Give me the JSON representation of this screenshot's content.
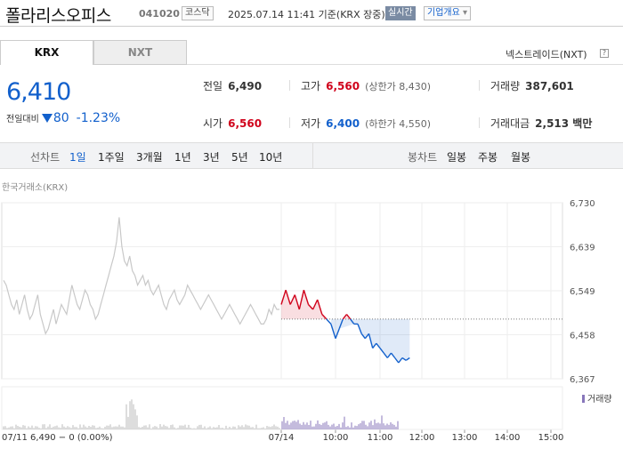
{
  "header": {
    "name": "폴라리스오피스",
    "code": "041020",
    "market": "코스닥",
    "datetime": "2025.07.14 11:41 기준(KRX 장중)",
    "live": "실시간",
    "info_btn": "기업개요"
  },
  "tabs": [
    {
      "label": "KRX"
    },
    {
      "label": "NXT"
    }
  ],
  "nxt_link": "넥스트레이드(NXT)",
  "quote": {
    "price": "6,410",
    "change_label": "전일대비",
    "change": "80",
    "change_pct": "-1.23%",
    "prev_label": "전일",
    "prev": "6,490",
    "high_label": "고가",
    "high": "6,560",
    "upper_label": "(상한가 8,430)",
    "volume_label": "거래량",
    "volume": "387,601",
    "open_label": "시가",
    "open": "6,560",
    "low_label": "저가",
    "low": "6,400",
    "lower_label": "(하한가 4,550)",
    "amount_label": "거래대금",
    "amount": "2,513 백만"
  },
  "periods": {
    "line_label": "선차트",
    "line": [
      "1일",
      "1주일",
      "3개월",
      "1년",
      "3년",
      "5년",
      "10년"
    ],
    "candle_label": "봉차트",
    "candle": [
      "일봉",
      "주봉",
      "월봉"
    ],
    "active": "1일"
  },
  "exchange_label": "한국거래소(KRX)",
  "colors": {
    "up": "#d0021b",
    "down": "#1260cc",
    "prev": "#c8c8c8"
  },
  "chart_data": {
    "type": "line",
    "y_ticks": [
      "6,730",
      "6,639",
      "6,549",
      "6,458",
      "6,367"
    ],
    "ylim": [
      6367,
      6730
    ],
    "prev_close": 6490,
    "volume_label": "거래량",
    "x_ticks": [
      "07/14",
      "10:00",
      "11:00",
      "12:00",
      "13:00",
      "14:00",
      "15:00"
    ],
    "prev_day_label": "07/11  6,490 − 0 (0.00%)",
    "prev_day": [
      6570,
      6560,
      6540,
      6520,
      6510,
      6530,
      6500,
      6520,
      6540,
      6510,
      6490,
      6500,
      6520,
      6540,
      6500,
      6480,
      6460,
      6470,
      6490,
      6510,
      6480,
      6500,
      6520,
      6510,
      6500,
      6530,
      6560,
      6540,
      6520,
      6510,
      6530,
      6550,
      6540,
      6520,
      6510,
      6490,
      6500,
      6520,
      6540,
      6560,
      6580,
      6600,
      6620,
      6650,
      6700,
      6640,
      6610,
      6600,
      6620,
      6590,
      6580,
      6560,
      6570,
      6580,
      6560,
      6570,
      6550,
      6540,
      6550,
      6560,
      6540,
      6520,
      6510,
      6530,
      6540,
      6550,
      6530,
      6520,
      6530,
      6540,
      6560,
      6550,
      6540,
      6530,
      6520,
      6510,
      6520,
      6530,
      6540,
      6530,
      6520,
      6510,
      6500,
      6490,
      6500,
      6510,
      6520,
      6510,
      6500,
      6490,
      6480,
      6490,
      6500,
      6510,
      6520,
      6510,
      6500,
      6490,
      6480,
      6480,
      6490,
      6510,
      6500,
      6520,
      6510,
      6510
    ],
    "today": [
      {
        "t": "09:00",
        "v": 6520
      },
      {
        "t": "09:05",
        "v": 6550
      },
      {
        "t": "09:10",
        "v": 6520
      },
      {
        "t": "09:15",
        "v": 6540
      },
      {
        "t": "09:20",
        "v": 6510
      },
      {
        "t": "09:25",
        "v": 6550
      },
      {
        "t": "09:30",
        "v": 6520
      },
      {
        "t": "09:35",
        "v": 6510
      },
      {
        "t": "09:40",
        "v": 6530
      },
      {
        "t": "09:45",
        "v": 6500
      },
      {
        "t": "09:50",
        "v": 6490
      },
      {
        "t": "09:55",
        "v": 6480
      },
      {
        "t": "10:00",
        "v": 6450
      },
      {
        "t": "10:05",
        "v": 6470
      },
      {
        "t": "10:10",
        "v": 6490
      },
      {
        "t": "10:15",
        "v": 6500
      },
      {
        "t": "10:20",
        "v": 6490
      },
      {
        "t": "10:25",
        "v": 6480
      },
      {
        "t": "10:30",
        "v": 6480
      },
      {
        "t": "10:35",
        "v": 6460
      },
      {
        "t": "10:40",
        "v": 6450
      },
      {
        "t": "10:45",
        "v": 6460
      },
      {
        "t": "10:50",
        "v": 6430
      },
      {
        "t": "10:55",
        "v": 6440
      },
      {
        "t": "11:00",
        "v": 6430
      },
      {
        "t": "11:05",
        "v": 6420
      },
      {
        "t": "11:10",
        "v": 6410
      },
      {
        "t": "11:15",
        "v": 6420
      },
      {
        "t": "11:20",
        "v": 6410
      },
      {
        "t": "11:25",
        "v": 6400
      },
      {
        "t": "11:30",
        "v": 6410
      },
      {
        "t": "11:35",
        "v": 6405
      },
      {
        "t": "11:40",
        "v": 6410
      }
    ]
  }
}
